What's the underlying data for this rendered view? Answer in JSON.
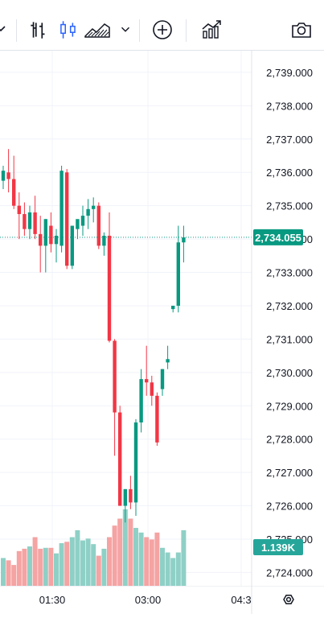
{
  "toolbar": {
    "icons": [
      "chevron-down-icon",
      "bar-chart-icon",
      "candles-icon",
      "area-chart-icon",
      "chevron-down-icon",
      "plus-circle-icon",
      "indicators-icon",
      "camera-icon"
    ]
  },
  "colors": {
    "up": "#26a69a",
    "down": "#ef5350",
    "upCandle": "#089981",
    "downCandle": "#f23645",
    "upVolume": "#8fd0c6",
    "downVolume": "#f5a3a3",
    "grid": "#f0f3fa",
    "axisText": "#131722",
    "priceTag": "#089981"
  },
  "chart_data": {
    "type": "candlestick",
    "ylim": [
      2723.6,
      2739.65
    ],
    "price_ticks": [
      "2,739.000",
      "2,738.000",
      "2,737.000",
      "2,736.000",
      "2,735.000",
      "2,734.000",
      "2,733.000",
      "2,732.000",
      "2,731.000",
      "2,730.000",
      "2,729.000",
      "2,728.000",
      "2,727.000",
      "2,726.000",
      "2,725.000",
      "2,724.000"
    ],
    "price_tick_values": [
      2739,
      2738,
      2737,
      2736,
      2735,
      2734,
      2733,
      2732,
      2731,
      2730,
      2729,
      2728,
      2727,
      2726,
      2725,
      2724
    ],
    "time_labels": [
      "01:30",
      "03:00",
      "04:3"
    ],
    "current_price": "2,734.055",
    "current_price_value": 2734.055,
    "volume_label": "1.139K",
    "candles": [
      {
        "o": 2735.75,
        "h": 2736.2,
        "l": 2735.5,
        "c": 2736.05
      },
      {
        "o": 2736.0,
        "h": 2736.7,
        "l": 2735.4,
        "c": 2735.8
      },
      {
        "o": 2735.8,
        "h": 2736.5,
        "l": 2734.9,
        "c": 2735.0
      },
      {
        "o": 2735.0,
        "h": 2735.4,
        "l": 2734.0,
        "c": 2734.75
      },
      {
        "o": 2734.75,
        "h": 2735.1,
        "l": 2734.1,
        "c": 2734.3
      },
      {
        "o": 2734.3,
        "h": 2735.0,
        "l": 2734.0,
        "c": 2734.8
      },
      {
        "o": 2734.8,
        "h": 2735.3,
        "l": 2734.0,
        "c": 2734.15
      },
      {
        "o": 2734.15,
        "h": 2734.7,
        "l": 2733.0,
        "c": 2733.8
      },
      {
        "o": 2733.8,
        "h": 2734.6,
        "l": 2733.0,
        "c": 2734.6
      },
      {
        "o": 2734.4,
        "h": 2734.8,
        "l": 2733.6,
        "c": 2733.85
      },
      {
        "o": 2733.85,
        "h": 2734.3,
        "l": 2733.3,
        "c": 2734.1
      },
      {
        "o": 2733.8,
        "h": 2736.2,
        "l": 2733.6,
        "c": 2736.05
      },
      {
        "o": 2736.0,
        "h": 2736.1,
        "l": 2733.1,
        "c": 2733.2
      },
      {
        "o": 2733.2,
        "h": 2734.4,
        "l": 2733.1,
        "c": 2734.4
      },
      {
        "o": 2734.3,
        "h": 2734.5,
        "l": 2734.0,
        "c": 2734.6
      },
      {
        "o": 2734.4,
        "h": 2735.0,
        "l": 2734.1,
        "c": 2734.7
      },
      {
        "o": 2734.7,
        "h": 2735.2,
        "l": 2734.3,
        "c": 2734.9
      },
      {
        "o": 2734.9,
        "h": 2735.25,
        "l": 2734.5,
        "c": 2735.0
      },
      {
        "o": 2735.0,
        "h": 2735.1,
        "l": 2733.7,
        "c": 2733.8
      },
      {
        "o": 2733.8,
        "h": 2734.2,
        "l": 2733.5,
        "c": 2734.1
      },
      {
        "o": 2734.1,
        "h": 2734.8,
        "l": 2730.9,
        "c": 2730.95
      },
      {
        "o": 2730.95,
        "h": 2731.0,
        "l": 2727.5,
        "c": 2728.8
      },
      {
        "o": 2728.8,
        "h": 2729.0,
        "l": 2726.0,
        "c": 2726.0
      },
      {
        "o": 2726.0,
        "h": 2726.5,
        "l": 2725.5,
        "c": 2726.5
      },
      {
        "o": 2726.5,
        "h": 2726.9,
        "l": 2725.9,
        "c": 2726.1
      },
      {
        "o": 2726.1,
        "h": 2728.6,
        "l": 2725.7,
        "c": 2728.5
      },
      {
        "o": 2728.5,
        "h": 2730.1,
        "l": 2728.2,
        "c": 2729.8
      },
      {
        "o": 2729.8,
        "h": 2730.8,
        "l": 2729.3,
        "c": 2729.7
      },
      {
        "o": 2729.7,
        "h": 2729.9,
        "l": 2729.0,
        "c": 2729.3
      },
      {
        "o": 2729.3,
        "h": 2729.4,
        "l": 2727.8,
        "c": 2727.9
      },
      {
        "o": 2729.5,
        "h": 2730.1,
        "l": 2729.3,
        "c": 2730.1
      },
      {
        "o": 2730.3,
        "h": 2730.8,
        "l": 2730.1,
        "c": 2730.4
      },
      {
        "o": 2731.9,
        "h": 2732.0,
        "l": 2731.8,
        "c": 2732.0
      },
      {
        "o": 2732.0,
        "h": 2734.4,
        "l": 2731.8,
        "c": 2733.9
      },
      {
        "o": 2733.9,
        "h": 2734.4,
        "l": 2733.3,
        "c": 2734.05
      }
    ],
    "volumes": [
      0.6,
      0.55,
      0.45,
      0.75,
      0.8,
      0.85,
      1.05,
      0.8,
      0.82,
      0.82,
      0.7,
      0.92,
      0.95,
      1.05,
      1.2,
      0.98,
      1.02,
      0.9,
      0.65,
      0.8,
      1.05,
      1.3,
      1.45,
      1.65,
      1.45,
      1.25,
      1.15,
      1.05,
      1.0,
      1.15,
      0.82,
      0.72,
      0.6,
      0.72,
      1.2
    ]
  }
}
